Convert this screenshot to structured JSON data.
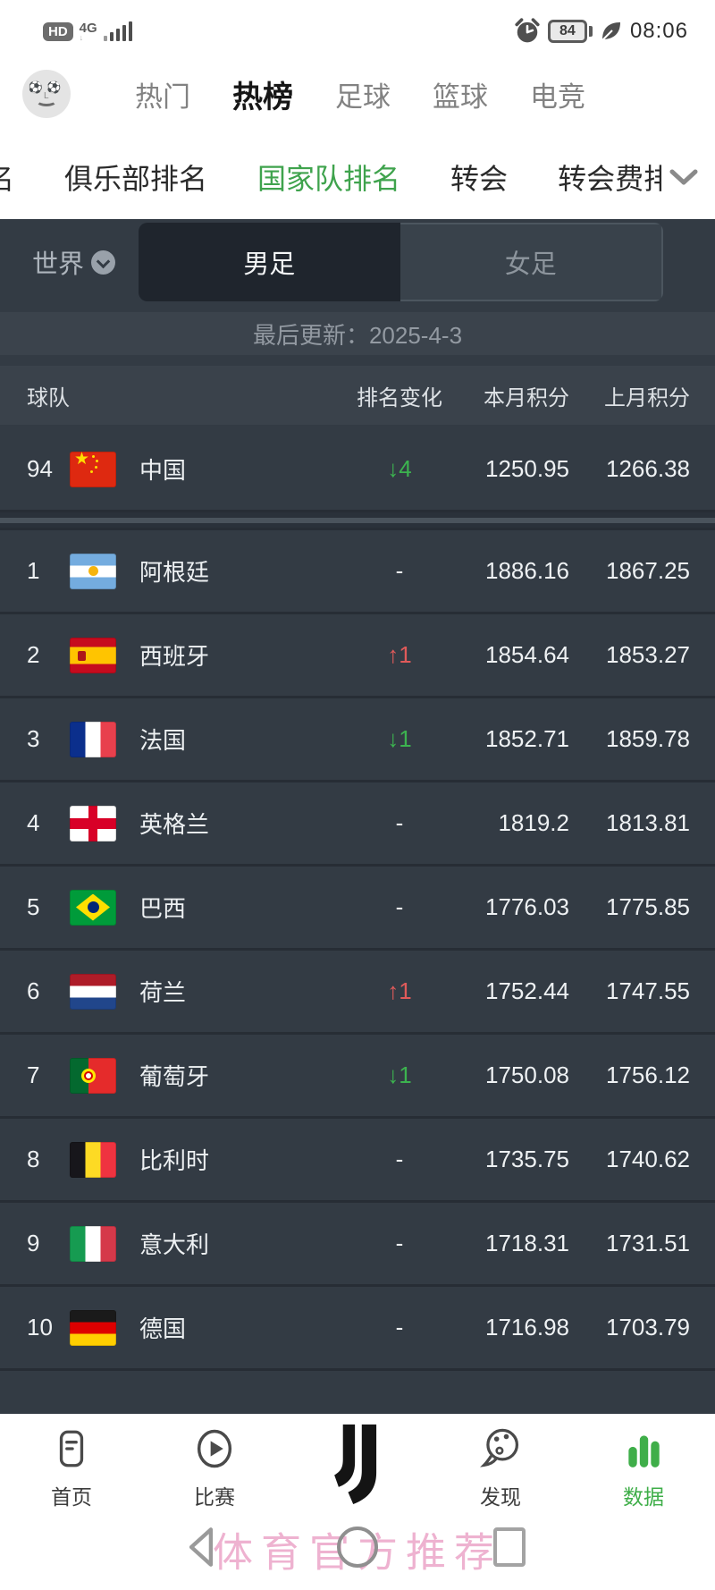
{
  "status_bar": {
    "hd_badge": "HD",
    "network": "4G",
    "network_sub": "↓",
    "battery_level": "84",
    "time": "08:06"
  },
  "top_nav": {
    "tabs": [
      {
        "label": "热门",
        "active": false
      },
      {
        "label": "热榜",
        "active": true
      },
      {
        "label": "足球",
        "active": false
      },
      {
        "label": "篮球",
        "active": false
      },
      {
        "label": "电竞",
        "active": false
      }
    ]
  },
  "sub_nav": {
    "tabs": [
      {
        "label": "名",
        "active": false
      },
      {
        "label": "俱乐部排名",
        "active": false
      },
      {
        "label": "国家队排名",
        "active": true
      },
      {
        "label": "转会",
        "active": false
      },
      {
        "label": "转会费排",
        "active": false
      }
    ]
  },
  "filter": {
    "region_label": "世界",
    "segments": [
      {
        "label": "男足",
        "active": true
      },
      {
        "label": "女足",
        "active": false
      }
    ]
  },
  "update_bar": {
    "text": "最后更新：2025-4-3"
  },
  "table": {
    "headers": {
      "team": "球队",
      "change": "排名变化",
      "current": "本月积分",
      "previous": "上月积分"
    },
    "rows": [
      {
        "rank": "94",
        "flag": "cn",
        "name": "中国",
        "change": "↓4",
        "dir": "down",
        "current": "1250.95",
        "previous": "1266.38",
        "pinned": true
      },
      {
        "rank": "1",
        "flag": "ar",
        "name": "阿根廷",
        "change": "-",
        "dir": "none",
        "current": "1886.16",
        "previous": "1867.25"
      },
      {
        "rank": "2",
        "flag": "es",
        "name": "西班牙",
        "change": "↑1",
        "dir": "up",
        "current": "1854.64",
        "previous": "1853.27"
      },
      {
        "rank": "3",
        "flag": "fr",
        "name": "法国",
        "change": "↓1",
        "dir": "down",
        "current": "1852.71",
        "previous": "1859.78"
      },
      {
        "rank": "4",
        "flag": "en",
        "name": "英格兰",
        "change": "-",
        "dir": "none",
        "current": "1819.2",
        "previous": "1813.81"
      },
      {
        "rank": "5",
        "flag": "br",
        "name": "巴西",
        "change": "-",
        "dir": "none",
        "current": "1776.03",
        "previous": "1775.85"
      },
      {
        "rank": "6",
        "flag": "nl",
        "name": "荷兰",
        "change": "↑1",
        "dir": "up",
        "current": "1752.44",
        "previous": "1747.55"
      },
      {
        "rank": "7",
        "flag": "pt",
        "name": "葡萄牙",
        "change": "↓1",
        "dir": "down",
        "current": "1750.08",
        "previous": "1756.12"
      },
      {
        "rank": "8",
        "flag": "be",
        "name": "比利时",
        "change": "-",
        "dir": "none",
        "current": "1735.75",
        "previous": "1740.62"
      },
      {
        "rank": "9",
        "flag": "it",
        "name": "意大利",
        "change": "-",
        "dir": "none",
        "current": "1718.31",
        "previous": "1731.51"
      },
      {
        "rank": "10",
        "flag": "de",
        "name": "德国",
        "change": "-",
        "dir": "none",
        "current": "1716.98",
        "previous": "1703.79"
      }
    ]
  },
  "tabbar": {
    "items": [
      {
        "label": "首页",
        "icon": "home-icon",
        "active": false
      },
      {
        "label": "比赛",
        "icon": "play-icon",
        "active": false
      },
      {
        "label": "",
        "icon": "juventus-logo",
        "active": false
      },
      {
        "label": "发现",
        "icon": "discover-icon",
        "active": false
      },
      {
        "label": "数据",
        "icon": "bar-chart-icon",
        "active": true
      }
    ]
  },
  "watermark": {
    "text": "体育官方推荐"
  },
  "colors": {
    "accent_green": "#3fa34d",
    "tabbar_active_green": "#3fae49",
    "rank_up_red": "#e05a5a",
    "rank_down_green": "#3cb34f",
    "panel_dark": "#333b44",
    "segment_active": "#1f252d"
  }
}
